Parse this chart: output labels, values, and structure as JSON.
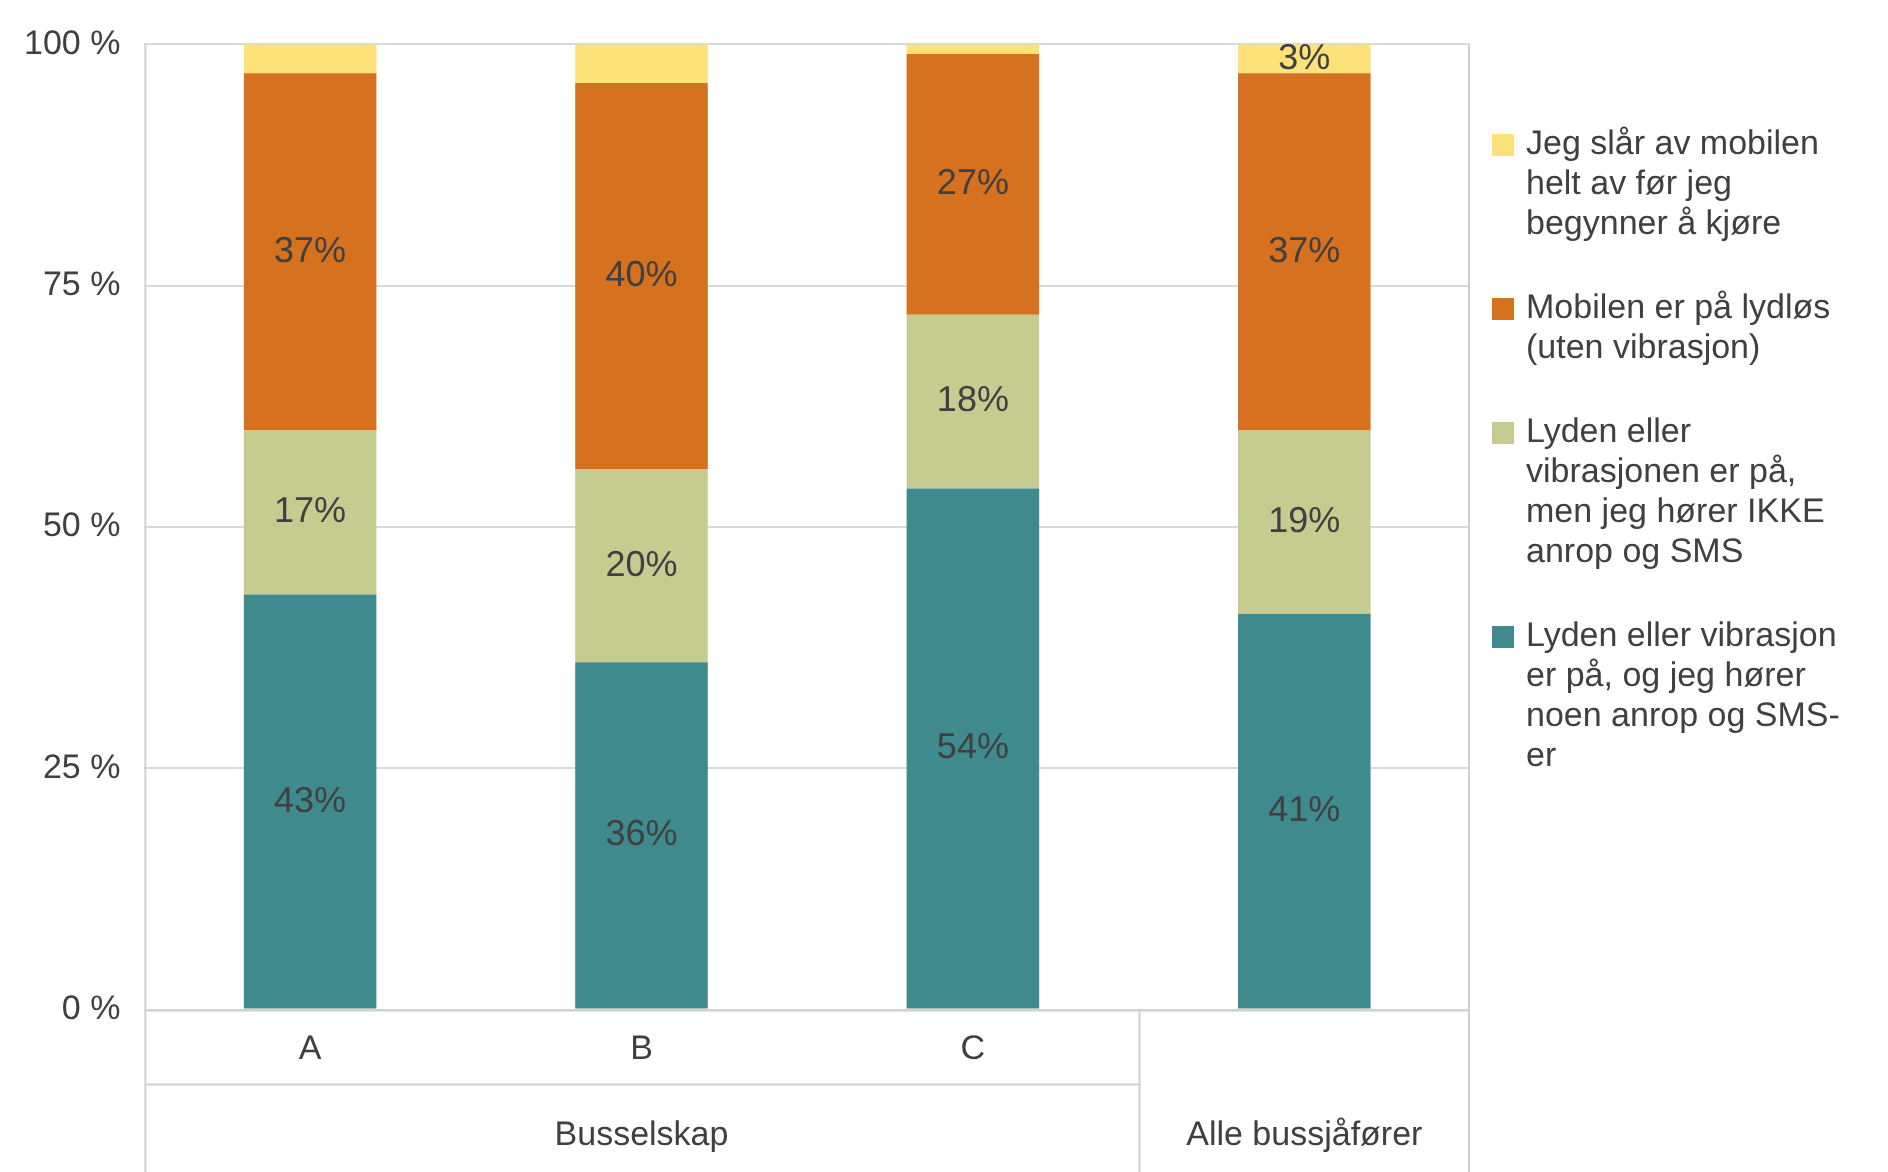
{
  "chart_data": {
    "type": "bar",
    "stacked": true,
    "categories": [
      "A",
      "B",
      "C",
      null
    ],
    "series": [
      {
        "name": "Lyden eller vibrasjon er på, og jeg hører noen anrop og SMS-er",
        "color": "#3f8a8c",
        "values": [
          43,
          36,
          54,
          41
        ],
        "value_labels": [
          "43%",
          "36%",
          "54%",
          "41%"
        ]
      },
      {
        "name": "Lyden eller vibrasjonen er på, men jeg hører IKKE anrop og SMS",
        "color": "#c6cc8f",
        "values": [
          17,
          20,
          18,
          19
        ],
        "value_labels": [
          "17%",
          "20%",
          "18%",
          "19%"
        ]
      },
      {
        "name": "Mobilen er på lydløs (uten vibrasjon)",
        "color": "#d5711f",
        "values": [
          37,
          40,
          27,
          37
        ],
        "value_labels": [
          "37%",
          "40%",
          "27%",
          "37%"
        ]
      },
      {
        "name": "Jeg slår av mobilen helt av før jeg begynner å kjøre",
        "color": "#fde27a",
        "values": [
          3,
          4,
          1,
          3
        ],
        "value_labels": [
          null,
          null,
          null,
          "3%"
        ]
      }
    ],
    "ylim": [
      0,
      100
    ],
    "yticks": [
      {
        "value": 0,
        "label": "0 %"
      },
      {
        "value": 25,
        "label": "25 %"
      },
      {
        "value": 50,
        "label": "50 %"
      },
      {
        "value": 75,
        "label": "75 %"
      },
      {
        "value": 100,
        "label": "100 %"
      }
    ],
    "grid": "y",
    "legend": "right",
    "annotations": [
      "Busselskap",
      "Alle bussjåfører"
    ]
  }
}
